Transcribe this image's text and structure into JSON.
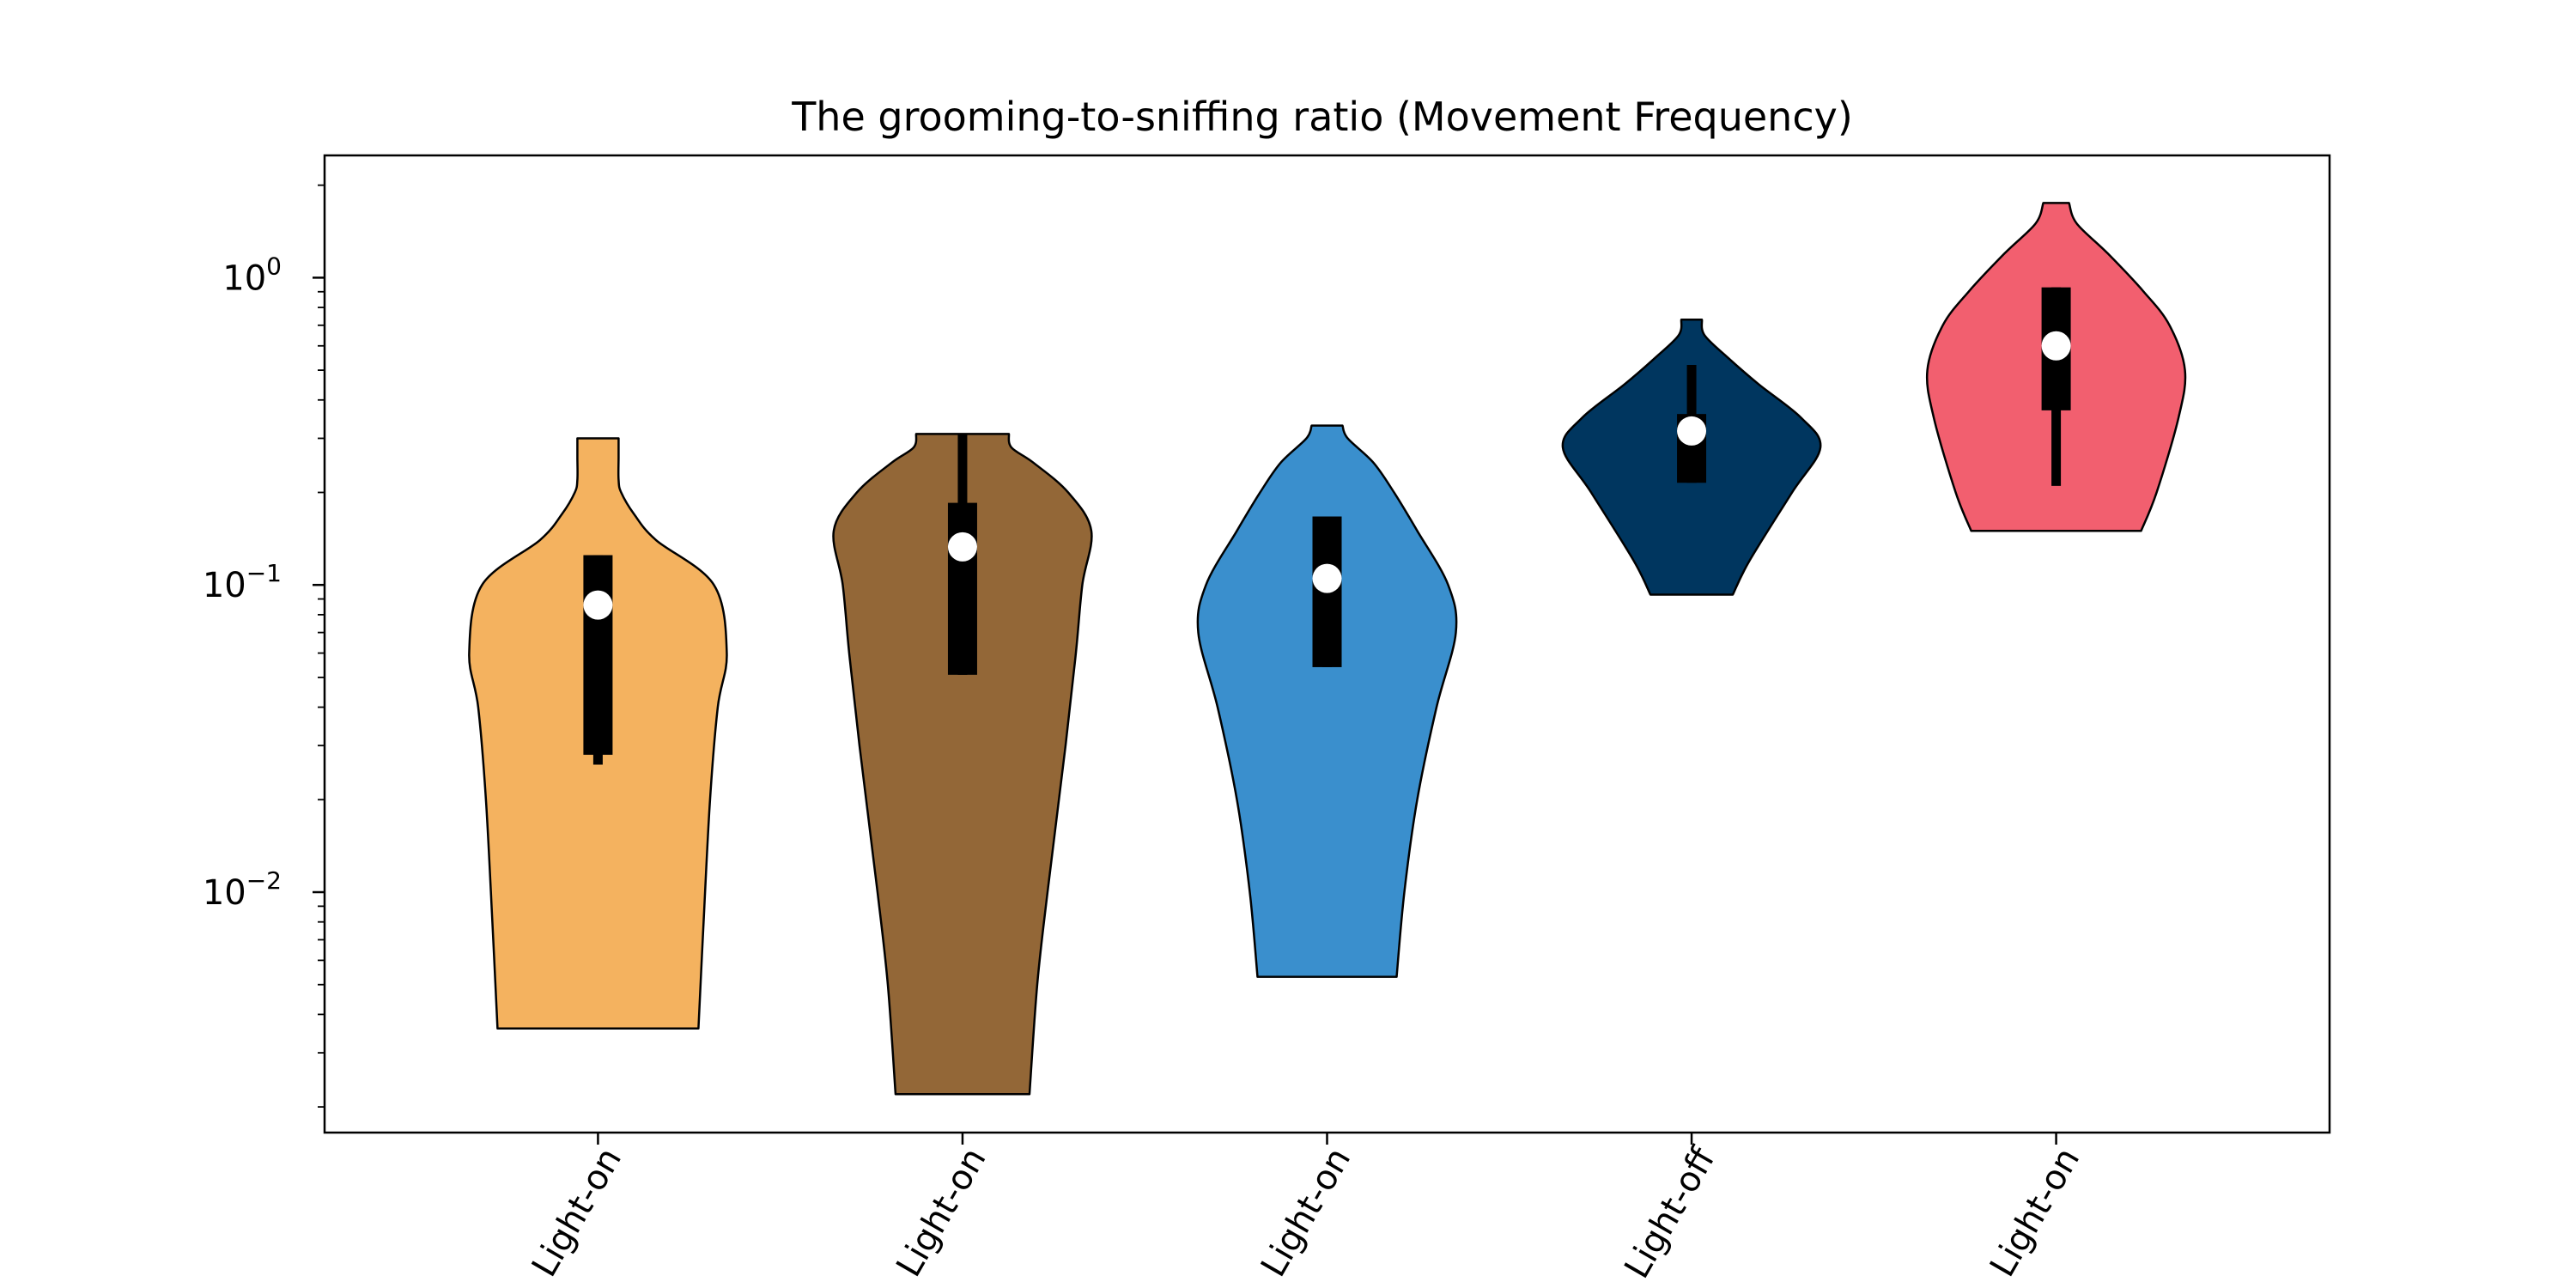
{
  "chart_data": {
    "type": "violin",
    "title": "The grooming-to-sniffing ratio (Movement Frequency)",
    "xlabel": "",
    "ylabel": "",
    "yscale": "log",
    "ylim": [
      0.00165,
      2.5
    ],
    "y_ticks": [
      {
        "value": 0.01,
        "base": "10",
        "exp": "−2"
      },
      {
        "value": 0.1,
        "base": "10",
        "exp": "−1"
      },
      {
        "value": 1,
        "base": "10",
        "exp": "0"
      }
    ],
    "categories": [
      "Light-on",
      "Light-on",
      "Light-on",
      "Light-off",
      "Light-on"
    ],
    "grid": false,
    "legend": "none",
    "series": [
      {
        "color": "#F4B25F",
        "min": 0.0036,
        "max": 0.3,
        "q1": 0.028,
        "median": 0.086,
        "q3": 0.125,
        "whisker_low": 0.026,
        "whisker_high": 0.125,
        "profile": [
          [
            0.0036,
            0.78
          ],
          [
            0.008,
            0.82
          ],
          [
            0.02,
            0.87
          ],
          [
            0.04,
            0.93
          ],
          [
            0.06,
            1.0
          ],
          [
            0.1,
            0.9
          ],
          [
            0.14,
            0.45
          ],
          [
            0.17,
            0.28
          ],
          [
            0.2,
            0.18
          ],
          [
            0.22,
            0.16
          ],
          [
            0.26,
            0.16
          ],
          [
            0.3,
            0.16
          ]
        ]
      },
      {
        "color": "#936737",
        "min": 0.0022,
        "max": 0.31,
        "q1": 0.051,
        "median": 0.133,
        "q3": 0.185,
        "whisker_low": 0.051,
        "whisker_high": 0.31,
        "profile": [
          [
            0.0022,
            0.52
          ],
          [
            0.005,
            0.58
          ],
          [
            0.01,
            0.66
          ],
          [
            0.03,
            0.8
          ],
          [
            0.06,
            0.88
          ],
          [
            0.1,
            0.93
          ],
          [
            0.15,
            1.0
          ],
          [
            0.2,
            0.82
          ],
          [
            0.25,
            0.55
          ],
          [
            0.28,
            0.38
          ],
          [
            0.31,
            0.36
          ]
        ]
      },
      {
        "color": "#3A8FCD",
        "min": 0.0053,
        "max": 0.33,
        "q1": 0.054,
        "median": 0.105,
        "q3": 0.167,
        "whisker_low": 0.054,
        "whisker_high": 0.167,
        "profile": [
          [
            0.0053,
            0.54
          ],
          [
            0.01,
            0.6
          ],
          [
            0.02,
            0.7
          ],
          [
            0.04,
            0.85
          ],
          [
            0.07,
            1.0
          ],
          [
            0.1,
            0.94
          ],
          [
            0.15,
            0.7
          ],
          [
            0.2,
            0.52
          ],
          [
            0.25,
            0.36
          ],
          [
            0.3,
            0.16
          ],
          [
            0.33,
            0.12
          ]
        ]
      },
      {
        "color": "#00365F",
        "min": 0.093,
        "max": 0.73,
        "q1": 0.215,
        "median": 0.317,
        "q3": 0.36,
        "whisker_low": 0.215,
        "whisker_high": 0.52,
        "profile": [
          [
            0.093,
            0.32
          ],
          [
            0.12,
            0.45
          ],
          [
            0.2,
            0.78
          ],
          [
            0.28,
            1.0
          ],
          [
            0.35,
            0.85
          ],
          [
            0.45,
            0.52
          ],
          [
            0.55,
            0.28
          ],
          [
            0.65,
            0.1
          ],
          [
            0.73,
            0.08
          ]
        ]
      },
      {
        "color": "#F25F6F",
        "min": 0.15,
        "max": 1.75,
        "q1": 0.37,
        "median": 0.6,
        "q3": 0.93,
        "whisker_low": 0.21,
        "whisker_high": 0.93,
        "profile": [
          [
            0.15,
            0.66
          ],
          [
            0.2,
            0.78
          ],
          [
            0.35,
            0.95
          ],
          [
            0.5,
            1.0
          ],
          [
            0.7,
            0.88
          ],
          [
            0.9,
            0.68
          ],
          [
            1.2,
            0.4
          ],
          [
            1.5,
            0.16
          ],
          [
            1.75,
            0.1
          ]
        ]
      }
    ]
  }
}
